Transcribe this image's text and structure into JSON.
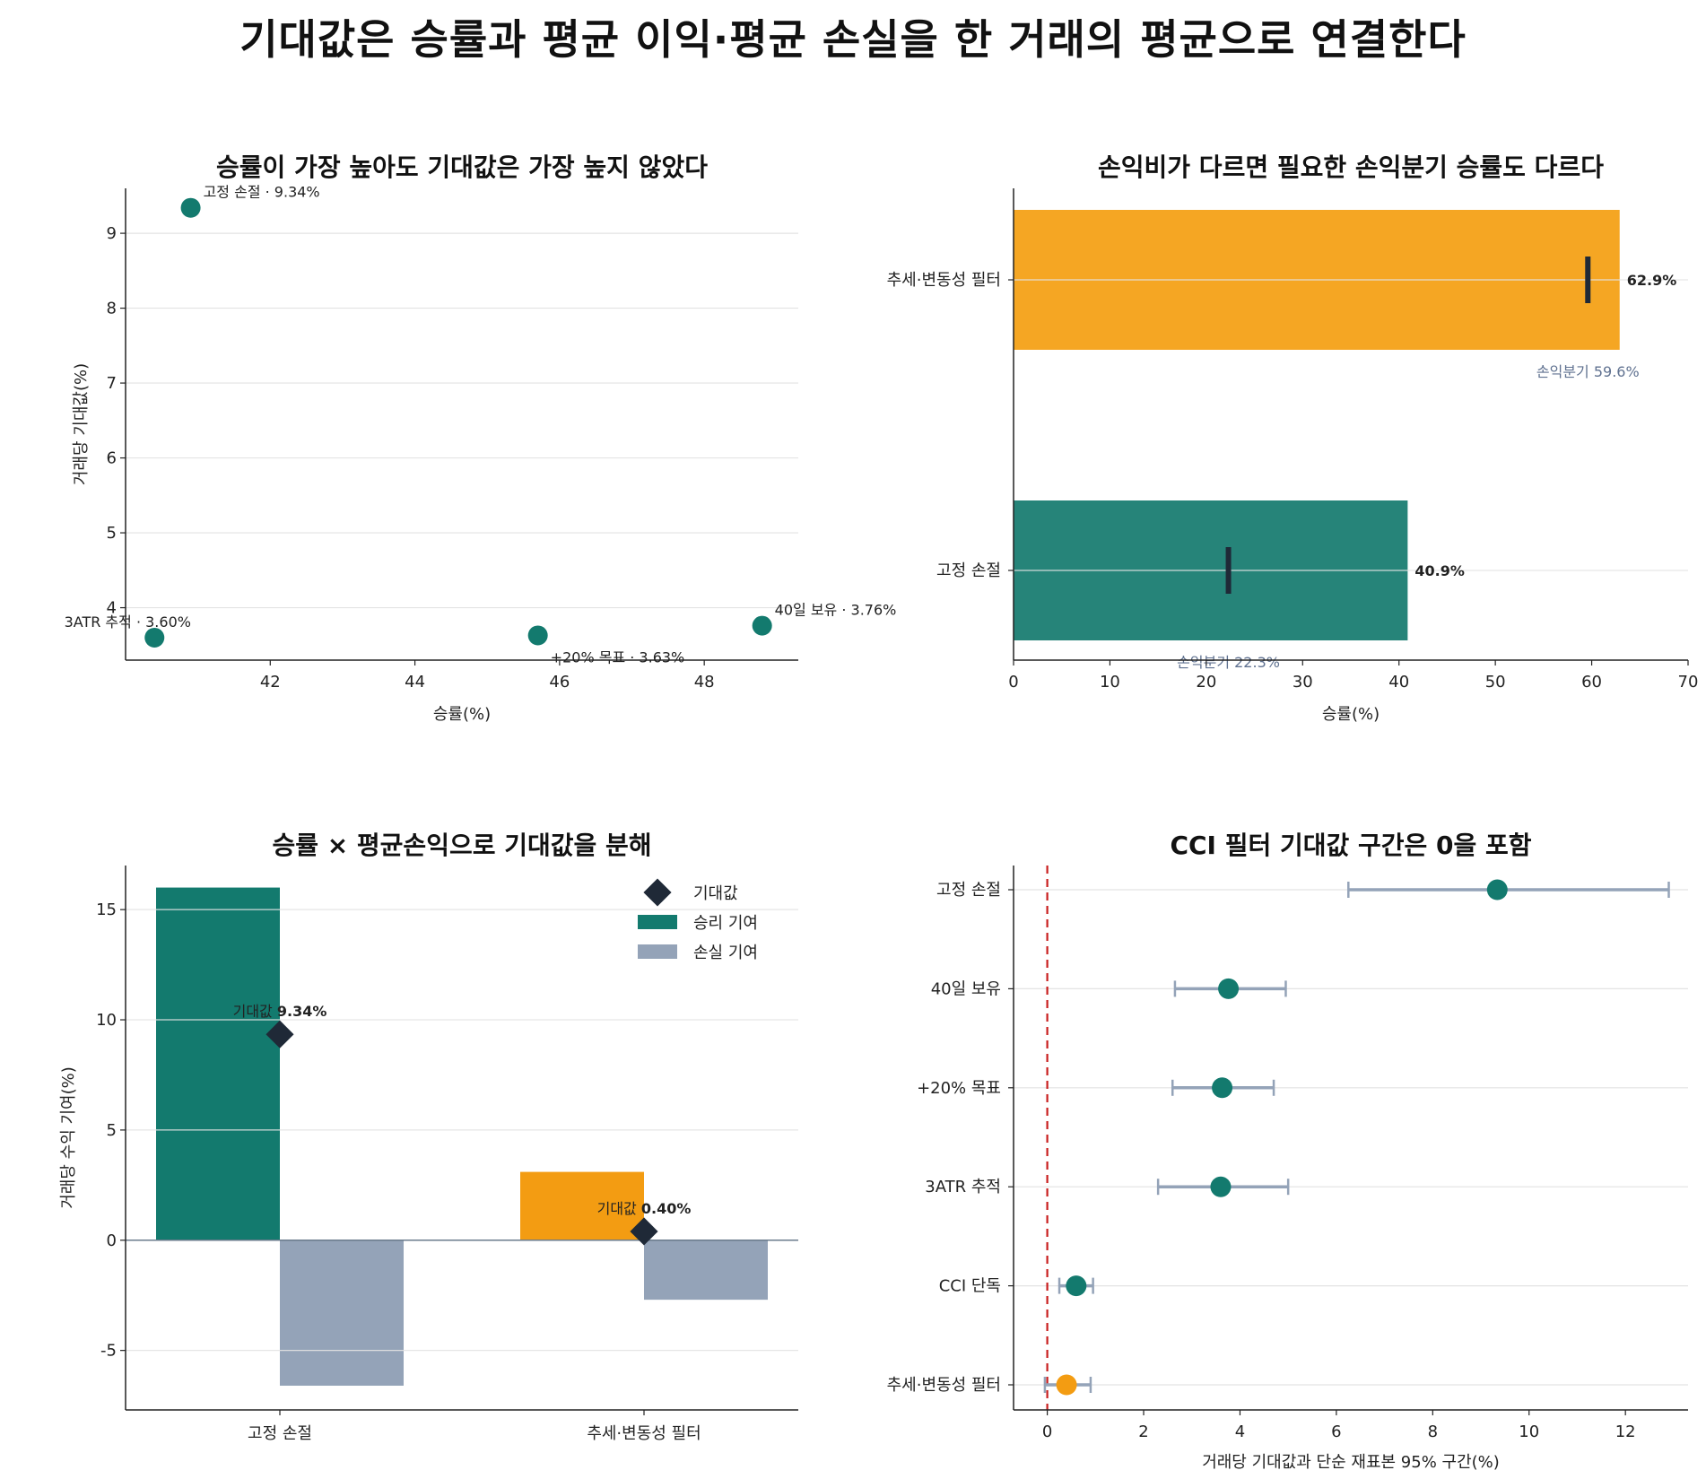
{
  "title": "기대값은 승률과 평균 이익·평균 손실을 한 거래의 평균으로 연결한다",
  "colors": {
    "teal": "#137a6e",
    "orange": "#f39c12",
    "orange_light": "#f5a623",
    "teal_bar": "#268479",
    "loss": "#94a3b8",
    "diamond": "#1f2937",
    "ref_line": "#c81e1e",
    "err": "#94a3b8"
  },
  "chart_data": [
    {
      "type": "scatter",
      "title": "승률이 가장 높아도 기대값은 가장 높지 않았다",
      "xlabel": "승률(%)",
      "ylabel": "거래당 기대값(%)",
      "xlim": [
        40.0,
        49.3
      ],
      "ylim": [
        3.3,
        9.6
      ],
      "xticks": [
        42,
        44,
        46,
        48
      ],
      "yticks": [
        4,
        5,
        6,
        7,
        8,
        9
      ],
      "grid": "y",
      "points": [
        {
          "label": "고정 손절 · 9.34%",
          "x": 40.9,
          "y": 9.34
        },
        {
          "label": "3ATR 추적 · 3.60%",
          "x": 40.4,
          "y": 3.6
        },
        {
          "label": "+20% 목표 · 3.63%",
          "x": 45.7,
          "y": 3.63
        },
        {
          "label": "40일 보유 · 3.76%",
          "x": 48.8,
          "y": 3.76
        }
      ]
    },
    {
      "type": "bar",
      "orientation": "horizontal",
      "title": "손익비가 다르면 필요한 손익분기 승률도 다르다",
      "xlabel": "승률(%)",
      "xlim": [
        0,
        70
      ],
      "xticks": [
        0,
        10,
        20,
        30,
        40,
        50,
        60,
        70
      ],
      "grid": "y",
      "categories": [
        "추세·변동성 필터",
        "고정 손절"
      ],
      "values": [
        62.9,
        40.9
      ],
      "value_labels": [
        "62.9%",
        "40.9%"
      ],
      "breakeven": [
        59.6,
        22.3
      ],
      "breakeven_labels": [
        "손익분기 59.6%",
        "손익분기 22.3%"
      ]
    },
    {
      "type": "bar",
      "title": "승률 × 평균손익으로 기대값을 분해",
      "ylabel": "거래당 수익 기여(%)",
      "ylim": [
        -7.7,
        17.0
      ],
      "yticks": [
        -5,
        0,
        5,
        10,
        15
      ],
      "ytick_labels": [
        "-5",
        "0",
        "5",
        "10",
        "15"
      ],
      "grid": "y",
      "categories": [
        "고정 손절",
        "추세·변동성 필터"
      ],
      "series": [
        {
          "name": "승리 기여",
          "values": [
            16.0,
            3.1
          ]
        },
        {
          "name": "손실 기여",
          "values": [
            -6.6,
            -2.7
          ]
        },
        {
          "name": "기대값",
          "values": [
            9.34,
            0.4
          ]
        }
      ],
      "ev_labels": [
        "기대값 9.34%",
        "기대값 0.40%"
      ],
      "ev_label_parts": [
        [
          "기대값",
          "9.34%"
        ],
        [
          "기대값",
          "0.40%"
        ]
      ],
      "legend": {
        "position": "top-right",
        "items": [
          "기대값",
          "승리 기여",
          "손실 기여"
        ]
      }
    },
    {
      "type": "scatter",
      "subtype": "errorbar",
      "title": "CCI 필터 기대값 구간은 0을 포함",
      "xlabel": "거래당 기대값과 단순 재표본 95% 구간(%)",
      "xlim": [
        -0.7,
        13.3
      ],
      "xticks": [
        0,
        2,
        4,
        6,
        8,
        10,
        12
      ],
      "grid": "y",
      "reference_x": 0,
      "categories": [
        "고정 손절",
        "40일 보유",
        "+20% 목표",
        "3ATR 추적",
        "CCI 단독",
        "추세·변동성 필터"
      ],
      "values": [
        9.34,
        3.76,
        3.63,
        3.6,
        0.6,
        0.4
      ],
      "ci_low": [
        6.25,
        2.65,
        2.6,
        2.3,
        0.25,
        -0.05
      ],
      "ci_high": [
        12.9,
        4.95,
        4.7,
        5.0,
        0.95,
        0.9
      ],
      "highlight": [
        false,
        false,
        false,
        false,
        false,
        true
      ]
    }
  ]
}
